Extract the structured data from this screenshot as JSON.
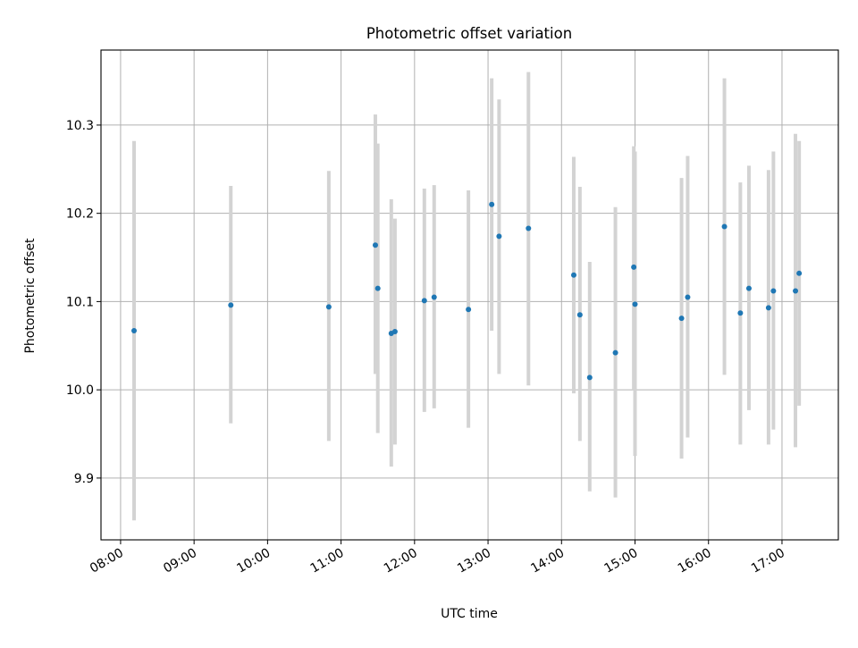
{
  "chart_data": {
    "type": "scatter",
    "title": "Photometric offset variation",
    "xlabel": "UTC time",
    "ylabel": "Photometric offset",
    "xlim": [
      "07:44",
      "17:46"
    ],
    "ylim": [
      9.83,
      10.385
    ],
    "x_ticks": [
      "08:00",
      "09:00",
      "10:00",
      "11:00",
      "12:00",
      "13:00",
      "14:00",
      "15:00",
      "16:00",
      "17:00"
    ],
    "y_ticks": [
      9.9,
      10.0,
      10.1,
      10.2,
      10.3
    ],
    "y_tick_labels": [
      "9.9",
      "10.0",
      "10.1",
      "10.2",
      "10.3"
    ],
    "grid": true,
    "marker_color": "#1f77b4",
    "errorbar_color": "#d3d3d3",
    "series": [
      {
        "points": [
          {
            "time": "08:11",
            "value": 10.067,
            "low": 9.852,
            "high": 10.282
          },
          {
            "time": "09:30",
            "value": 10.096,
            "low": 9.962,
            "high": 10.231
          },
          {
            "time": "10:50",
            "value": 10.094,
            "low": 9.942,
            "high": 10.248
          },
          {
            "time": "11:28",
            "value": 10.164,
            "low": 10.018,
            "high": 10.312
          },
          {
            "time": "11:30",
            "value": 10.115,
            "low": 9.951,
            "high": 10.279
          },
          {
            "time": "11:41",
            "value": 10.064,
            "low": 9.913,
            "high": 10.216
          },
          {
            "time": "11:44",
            "value": 10.066,
            "low": 9.938,
            "high": 10.194
          },
          {
            "time": "12:08",
            "value": 10.101,
            "low": 9.975,
            "high": 10.228
          },
          {
            "time": "12:16",
            "value": 10.105,
            "low": 9.979,
            "high": 10.232
          },
          {
            "time": "12:44",
            "value": 10.091,
            "low": 9.957,
            "high": 10.226
          },
          {
            "time": "13:03",
            "value": 10.21,
            "low": 10.067,
            "high": 10.353
          },
          {
            "time": "13:09",
            "value": 10.174,
            "low": 10.018,
            "high": 10.329
          },
          {
            "time": "13:33",
            "value": 10.183,
            "low": 10.005,
            "high": 10.36
          },
          {
            "time": "14:10",
            "value": 10.13,
            "low": 9.996,
            "high": 10.264
          },
          {
            "time": "14:15",
            "value": 10.085,
            "low": 9.942,
            "high": 10.23
          },
          {
            "time": "14:23",
            "value": 10.014,
            "low": 9.885,
            "high": 10.145
          },
          {
            "time": "14:44",
            "value": 10.042,
            "low": 9.878,
            "high": 10.207
          },
          {
            "time": "14:59",
            "value": 10.139,
            "low": 10.0,
            "high": 10.276
          },
          {
            "time": "15:00",
            "value": 10.097,
            "low": 9.925,
            "high": 10.27
          },
          {
            "time": "15:38",
            "value": 10.081,
            "low": 9.922,
            "high": 10.24
          },
          {
            "time": "15:43",
            "value": 10.105,
            "low": 9.946,
            "high": 10.265
          },
          {
            "time": "16:13",
            "value": 10.185,
            "low": 10.017,
            "high": 10.353
          },
          {
            "time": "16:26",
            "value": 10.087,
            "low": 9.938,
            "high": 10.235
          },
          {
            "time": "16:33",
            "value": 10.115,
            "low": 9.977,
            "high": 10.254
          },
          {
            "time": "16:49",
            "value": 10.093,
            "low": 9.938,
            "high": 10.249
          },
          {
            "time": "16:53",
            "value": 10.112,
            "low": 9.955,
            "high": 10.27
          },
          {
            "time": "17:11",
            "value": 10.112,
            "low": 9.935,
            "high": 10.29
          },
          {
            "time": "17:14",
            "value": 10.132,
            "low": 9.982,
            "high": 10.282
          }
        ]
      }
    ]
  }
}
